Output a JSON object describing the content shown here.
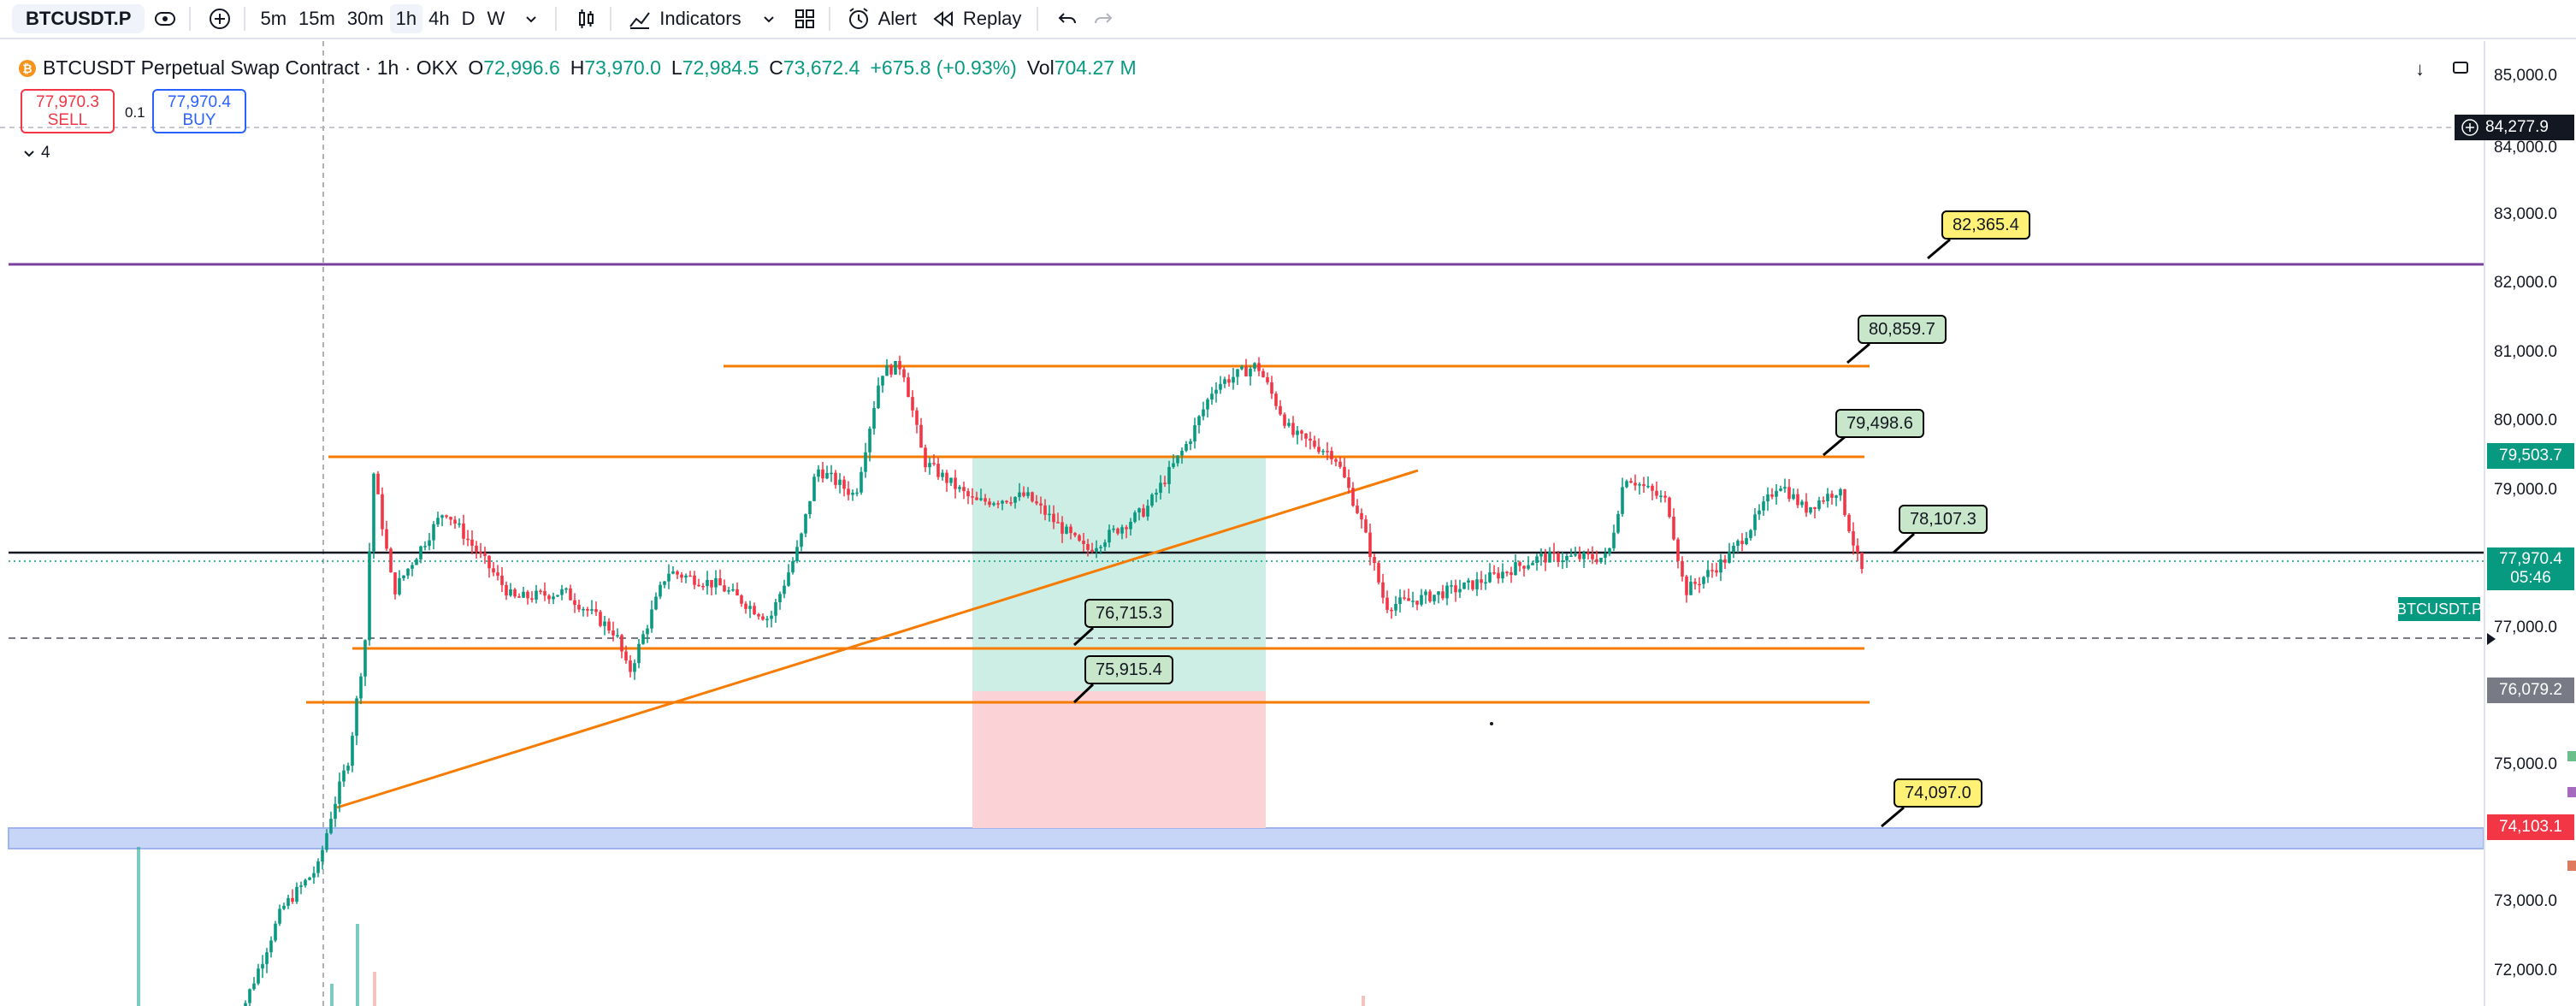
{
  "toolbar": {
    "symbol": "BTCUSDT.P",
    "timeframes": [
      "5m",
      "15m",
      "30m",
      "1h",
      "4h",
      "D",
      "W"
    ],
    "active_timeframe": "1h",
    "indicators_label": "Indicators",
    "alert_label": "Alert",
    "replay_label": "Replay"
  },
  "legend": {
    "title": "BTCUSDT Perpetual Swap Contract · 1h · OKX",
    "open_key": "O",
    "open": "72,996.6",
    "high_key": "H",
    "high": "73,970.0",
    "low_key": "L",
    "low": "72,984.5",
    "close_key": "C",
    "close": "73,672.4",
    "change": "+675.8 (+0.93%)",
    "vol_key": "Vol",
    "vol": "704.27 M"
  },
  "trade": {
    "sell_price": "77,970.3",
    "sell_label": "SELL",
    "qty": "0.1",
    "buy_price": "77,970.4",
    "buy_label": "BUY"
  },
  "indicator_count": "4",
  "price_axis": {
    "ticks": [
      "85,000.0",
      "84,000.0",
      "83,000.0",
      "82,000.0",
      "81,000.0",
      "80,000.0",
      "79,000.0",
      "77,000.0",
      "75,000.0",
      "73,000.0",
      "72,000.0"
    ],
    "labels": {
      "crosshair": "84,277.9",
      "level_green": "79,503.7",
      "current": "77,970.4",
      "countdown": "05:46",
      "grey": "76,079.2",
      "red": "74,103.1"
    }
  },
  "symbol_tag": "BTCUSDT.P",
  "callouts": [
    {
      "text": "82,365.4",
      "color": "yellow"
    },
    {
      "text": "80,859.7",
      "color": "green"
    },
    {
      "text": "79,498.6",
      "color": "green"
    },
    {
      "text": "78,107.3",
      "color": "green"
    },
    {
      "text": "76,715.3",
      "color": "green"
    },
    {
      "text": "75,915.4",
      "color": "green"
    },
    {
      "text": "74,097.0",
      "color": "yellow"
    }
  ],
  "colors": {
    "up": "#089981",
    "down": "#f23645",
    "orange_line": "#f57c00",
    "purple_line": "#7b3fa0",
    "zone_blue": "#c7d6f7",
    "profit_zone": "#cdeee4",
    "loss_zone": "#fbd3d6"
  }
}
